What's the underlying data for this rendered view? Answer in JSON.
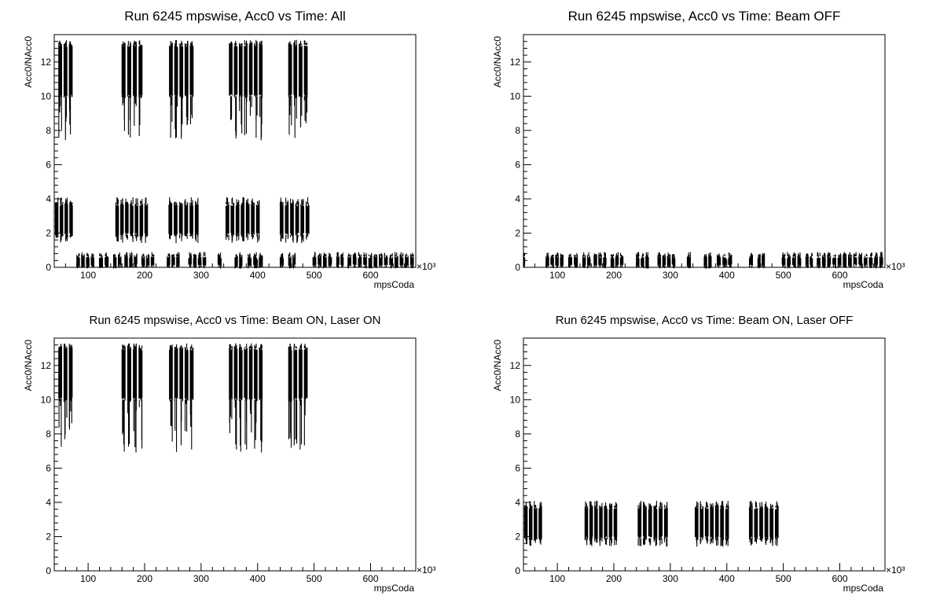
{
  "chart_data": [
    {
      "type": "scatter",
      "title": "Run 6245 mpswise, Acc0 vs Time: All",
      "xlabel": "mpsCoda",
      "ylabel": "Acc0/NAcc0",
      "x_multiplier": "×10³",
      "xlim": [
        40,
        680
      ],
      "ylim": [
        0,
        13.6
      ],
      "xticks": [
        "100",
        "200",
        "300",
        "400",
        "500",
        "600"
      ],
      "yticks": [
        "0",
        "2",
        "4",
        "6",
        "8",
        "10",
        "12"
      ],
      "bands": [
        {
          "name": "laser-on",
          "ranges": [
            [
              48,
              76
            ],
            [
              160,
              200
            ],
            [
              244,
              290
            ],
            [
              350,
              412
            ],
            [
              455,
              492
            ]
          ],
          "lo": 10.0,
          "hi": 13.0,
          "tail_min": 7.4,
          "tail_max": 13.3
        },
        {
          "name": "laser-off",
          "ranges": [
            [
              42,
              76
            ],
            [
              149,
              209
            ],
            [
              243,
              299
            ],
            [
              344,
              407
            ],
            [
              440,
              495
            ]
          ],
          "lo": 1.9,
          "hi": 3.7,
          "tail_min": 1.4,
          "tail_max": 4.1
        },
        {
          "name": "beam-off",
          "ranges": [
            [
              80,
              114
            ],
            [
              120,
              140
            ],
            [
              145,
              162
            ],
            [
              165,
              190
            ],
            [
              195,
              220
            ],
            [
              240,
              265
            ],
            [
              278,
              312
            ],
            [
              330,
              340
            ],
            [
              360,
              376
            ],
            [
              383,
              413
            ],
            [
              440,
              450
            ],
            [
              455,
              470
            ],
            [
              498,
              535
            ],
            [
              540,
              555
            ],
            [
              560,
              680
            ]
          ],
          "lo": 0.05,
          "hi": 0.65,
          "tail_min": 0.0,
          "tail_max": 0.9
        }
      ]
    },
    {
      "type": "scatter",
      "title": "Run 6245 mpswise, Acc0 vs Time: Beam OFF",
      "xlabel": "mpsCoda",
      "ylabel": "Acc0/NAcc0",
      "x_multiplier": "×10³",
      "xlim": [
        40,
        680
      ],
      "ylim": [
        0,
        13.6
      ],
      "xticks": [
        "100",
        "200",
        "300",
        "400",
        "500",
        "600"
      ],
      "yticks": [
        "0",
        "2",
        "4",
        "6",
        "8",
        "10",
        "12"
      ],
      "bands": [
        {
          "name": "beam-off",
          "ranges": [
            [
              40,
              44
            ],
            [
              80,
              114
            ],
            [
              120,
              140
            ],
            [
              145,
              162
            ],
            [
              165,
              190
            ],
            [
              195,
              220
            ],
            [
              240,
              265
            ],
            [
              278,
              312
            ],
            [
              330,
              340
            ],
            [
              360,
              376
            ],
            [
              383,
              413
            ],
            [
              440,
              450
            ],
            [
              455,
              470
            ],
            [
              498,
              535
            ],
            [
              540,
              555
            ],
            [
              560,
              680
            ]
          ],
          "lo": 0.05,
          "hi": 0.65,
          "tail_min": 0.0,
          "tail_max": 0.9
        }
      ]
    },
    {
      "type": "scatter",
      "title": "Run 6245 mpswise, Acc0 vs Time: Beam ON, Laser ON",
      "xlabel": "mpsCoda",
      "ylabel": "Acc0/NAcc0",
      "x_multiplier": "×10³",
      "xlim": [
        40,
        680
      ],
      "ylim": [
        0,
        13.6
      ],
      "xticks": [
        "100",
        "200",
        "300",
        "400",
        "500",
        "600"
      ],
      "yticks": [
        "0",
        "2",
        "4",
        "6",
        "8",
        "10",
        "12"
      ],
      "bands": [
        {
          "name": "laser-on",
          "ranges": [
            [
              48,
              76
            ],
            [
              160,
              200
            ],
            [
              244,
              290
            ],
            [
              350,
              412
            ],
            [
              455,
              492
            ]
          ],
          "lo": 10.0,
          "hi": 13.0,
          "tail_min": 6.8,
          "tail_max": 13.3
        }
      ]
    },
    {
      "type": "scatter",
      "title": "Run 6245 mpswise, Acc0 vs Time: Beam ON, Laser OFF",
      "xlabel": "mpsCoda",
      "ylabel": "Acc0/NAcc0",
      "x_multiplier": "×10³",
      "xlim": [
        40,
        680
      ],
      "ylim": [
        0,
        13.6
      ],
      "xticks": [
        "100",
        "200",
        "300",
        "400",
        "500",
        "600"
      ],
      "yticks": [
        "0",
        "2",
        "4",
        "6",
        "8",
        "10",
        "12"
      ],
      "bands": [
        {
          "name": "laser-off",
          "ranges": [
            [
              42,
              76
            ],
            [
              149,
              209
            ],
            [
              243,
              299
            ],
            [
              344,
              407
            ],
            [
              440,
              495
            ]
          ],
          "lo": 1.9,
          "hi": 3.7,
          "tail_min": 1.4,
          "tail_max": 4.1
        }
      ]
    }
  ]
}
